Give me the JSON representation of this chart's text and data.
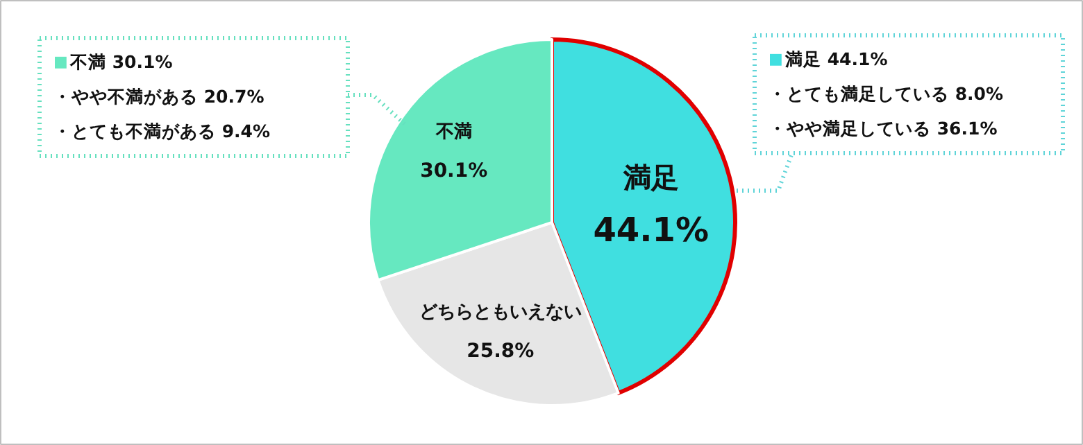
{
  "chart_data": {
    "type": "pie",
    "categories": [
      "満足",
      "どちらともいえない",
      "不満"
    ],
    "values": [
      44.1,
      25.8,
      30.1
    ],
    "colors": [
      "#40dfe0",
      "#e6e6e6",
      "#66e8c0"
    ],
    "value_labels": [
      "44.1%",
      "25.8%",
      "30.1%"
    ],
    "annotations": [
      "■不満  30.1%",
      "・やや不満がある  20.7%",
      "・とても不満がある  9.4%",
      "■満足  44.1%",
      "・とても満足している  8.0%",
      "・やや満足している  36.1%"
    ]
  }
}
